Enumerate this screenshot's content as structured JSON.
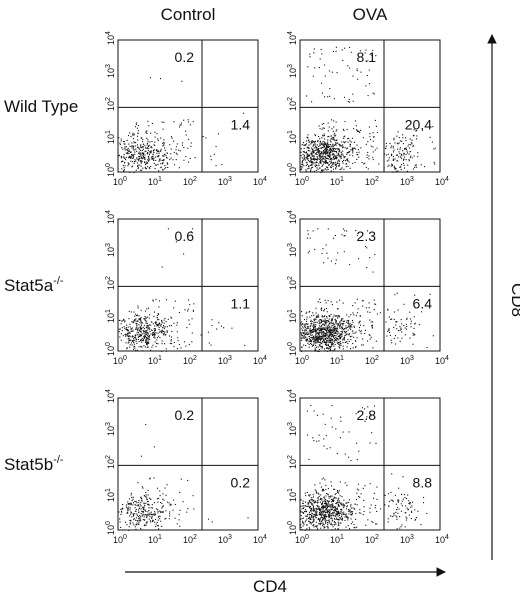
{
  "figure": {
    "columns": [
      "Control",
      "OVA"
    ],
    "rows": [
      {
        "name": "Wild Type",
        "superscript": null
      },
      {
        "name": "Stat5a",
        "superscript": "-/-"
      },
      {
        "name": "Stat5b",
        "superscript": "-/-"
      }
    ],
    "panels": [
      {
        "upper_left": "0.2",
        "lower_right": "1.4"
      },
      {
        "upper_left": "8.1",
        "lower_right": "20.4"
      },
      {
        "upper_left": "0.6",
        "lower_right": "1.1"
      },
      {
        "upper_left": "2.3",
        "lower_right": "6.4"
      },
      {
        "upper_left": "0.2",
        "lower_right": "0.2"
      },
      {
        "upper_left": "2.8",
        "lower_right": "8.8"
      }
    ],
    "tick_base": "10",
    "tick_exponents": [
      0,
      1,
      2,
      3,
      4
    ],
    "x_axis_label": "CD4",
    "y_axis_label": "CD8"
  }
}
